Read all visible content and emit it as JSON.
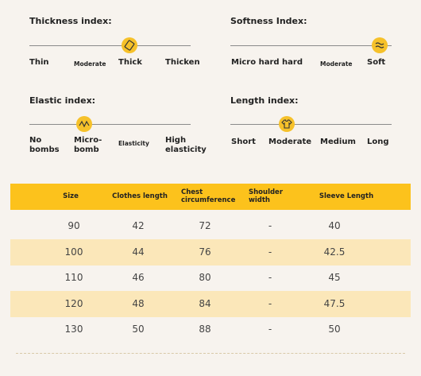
{
  "indices": [
    {
      "title": "Thickness index:",
      "labels": [
        "Thin",
        "Moderate",
        "Thick",
        "Thicken"
      ]
    },
    {
      "title": "Softness Index:",
      "labels": [
        "Micro hard hard",
        "Moderate",
        "Soft"
      ]
    },
    {
      "title": "Elastic index:",
      "labels": [
        "No bombs",
        "Micro-bomb",
        "Elasticity",
        "High elasticity"
      ]
    },
    {
      "title": "Length index:",
      "labels": [
        "Short",
        "Moderate",
        "Medium",
        "Long"
      ]
    }
  ],
  "table": {
    "header": [
      "Size",
      "Clothes length",
      "Chest circumference",
      "Shoulder width",
      "Sleeve Length"
    ],
    "rows": [
      [
        "90",
        "42",
        "72",
        "-",
        "40"
      ],
      [
        "100",
        "44",
        "76",
        "-",
        "42.5"
      ],
      [
        "110",
        "46",
        "80",
        "-",
        "45"
      ],
      [
        "120",
        "48",
        "84",
        "-",
        "47.5"
      ],
      [
        "130",
        "50",
        "88",
        "-",
        "50"
      ]
    ]
  }
}
